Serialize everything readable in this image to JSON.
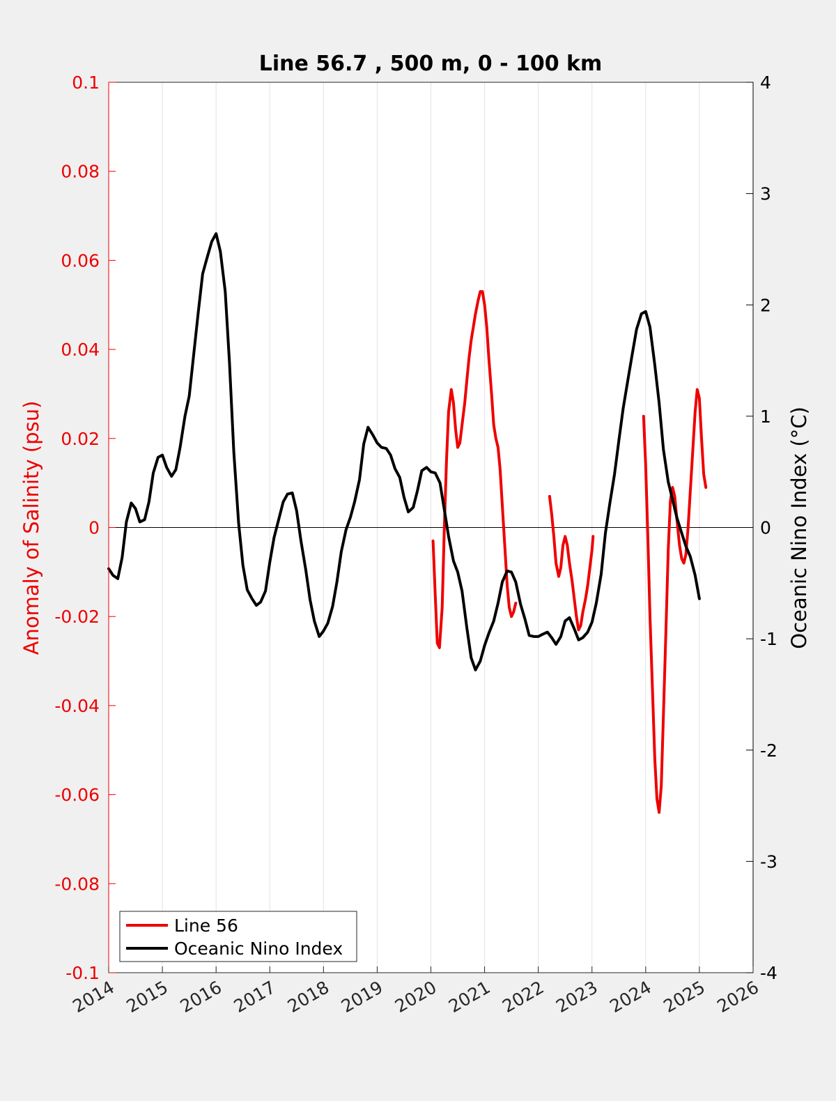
{
  "chart_data": {
    "type": "line",
    "title": "Line 56.7 , 500 m, 0 - 100 km",
    "ylabel_left": "Anomaly of Salinity (psu)",
    "ylabel_right": "Oceanic Nino Index (°C)",
    "xlim": [
      2014,
      2026
    ],
    "ylim_left": [
      -0.1,
      0.1
    ],
    "ylim_right": [
      -4,
      4
    ],
    "x_ticks": [
      "2014",
      "2015",
      "2016",
      "2017",
      "2018",
      "2019",
      "2020",
      "2021",
      "2022",
      "2023",
      "2024",
      "2025",
      "2026"
    ],
    "y_left_ticks": [
      "0.1",
      "0.08",
      "0.06",
      "0.04",
      "0.02",
      "0",
      "-0.02",
      "-0.04",
      "-0.06",
      "-0.08",
      "-0.1"
    ],
    "y_right_ticks": [
      "4",
      "3",
      "2",
      "1",
      "0",
      "-1",
      "-2",
      "-3",
      "-4"
    ],
    "grid": "vertical",
    "zero_line": true,
    "legend": {
      "position": "bottom-left",
      "entries": [
        "Line 56",
        "Oceanic Nino Index"
      ]
    },
    "colors": {
      "line56": "#ee0000",
      "oni": "#000000",
      "left_axis": "#ee0000",
      "right_axis": "#000000"
    },
    "series": [
      {
        "name": "Line 56",
        "axis": "left",
        "color": "#ee0000",
        "segments": [
          [
            [
              2020.04,
              -0.003
            ],
            [
              2020.08,
              -0.015
            ],
            [
              2020.12,
              -0.026
            ],
            [
              2020.16,
              -0.027
            ],
            [
              2020.21,
              -0.018
            ],
            [
              2020.25,
              0.0
            ],
            [
              2020.29,
              0.015
            ],
            [
              2020.33,
              0.026
            ],
            [
              2020.38,
              0.031
            ],
            [
              2020.42,
              0.028
            ],
            [
              2020.46,
              0.022
            ],
            [
              2020.5,
              0.018
            ],
            [
              2020.54,
              0.019
            ],
            [
              2020.58,
              0.023
            ],
            [
              2020.63,
              0.028
            ],
            [
              2020.67,
              0.033
            ],
            [
              2020.71,
              0.038
            ],
            [
              2020.75,
              0.042
            ],
            [
              2020.79,
              0.045
            ],
            [
              2020.83,
              0.048
            ],
            [
              2020.88,
              0.051
            ],
            [
              2020.92,
              0.053
            ],
            [
              2020.96,
              0.053
            ],
            [
              2021.0,
              0.05
            ],
            [
              2021.04,
              0.045
            ],
            [
              2021.08,
              0.038
            ],
            [
              2021.13,
              0.03
            ],
            [
              2021.17,
              0.023
            ],
            [
              2021.21,
              0.02
            ],
            [
              2021.25,
              0.018
            ],
            [
              2021.29,
              0.013
            ],
            [
              2021.33,
              0.005
            ],
            [
              2021.38,
              -0.005
            ],
            [
              2021.42,
              -0.013
            ],
            [
              2021.46,
              -0.018
            ],
            [
              2021.5,
              -0.02
            ],
            [
              2021.54,
              -0.019
            ],
            [
              2021.58,
              -0.017
            ]
          ],
          [
            [
              2022.21,
              0.007
            ],
            [
              2022.25,
              0.003
            ],
            [
              2022.29,
              -0.002
            ],
            [
              2022.33,
              -0.008
            ],
            [
              2022.38,
              -0.011
            ],
            [
              2022.42,
              -0.009
            ],
            [
              2022.46,
              -0.004
            ],
            [
              2022.5,
              -0.002
            ],
            [
              2022.54,
              -0.004
            ],
            [
              2022.58,
              -0.008
            ],
            [
              2022.63,
              -0.012
            ],
            [
              2022.67,
              -0.016
            ],
            [
              2022.71,
              -0.02
            ],
            [
              2022.75,
              -0.023
            ],
            [
              2022.79,
              -0.022
            ],
            [
              2022.83,
              -0.019
            ],
            [
              2022.88,
              -0.016
            ],
            [
              2022.92,
              -0.013
            ],
            [
              2022.96,
              -0.009
            ],
            [
              2023.0,
              -0.005
            ],
            [
              2023.02,
              -0.002
            ]
          ],
          [
            [
              2023.96,
              0.025
            ],
            [
              2024.0,
              0.014
            ],
            [
              2024.04,
              -0.002
            ],
            [
              2024.08,
              -0.02
            ],
            [
              2024.13,
              -0.038
            ],
            [
              2024.17,
              -0.052
            ],
            [
              2024.21,
              -0.061
            ],
            [
              2024.25,
              -0.064
            ],
            [
              2024.29,
              -0.058
            ],
            [
              2024.33,
              -0.042
            ],
            [
              2024.38,
              -0.022
            ],
            [
              2024.42,
              -0.005
            ],
            [
              2024.46,
              0.006
            ],
            [
              2024.5,
              0.009
            ],
            [
              2024.54,
              0.007
            ],
            [
              2024.58,
              0.002
            ],
            [
              2024.63,
              -0.004
            ],
            [
              2024.67,
              -0.007
            ],
            [
              2024.71,
              -0.008
            ],
            [
              2024.75,
              -0.006
            ],
            [
              2024.79,
              0.0
            ],
            [
              2024.83,
              0.008
            ],
            [
              2024.88,
              0.018
            ],
            [
              2024.92,
              0.026
            ],
            [
              2024.96,
              0.031
            ],
            [
              2025.0,
              0.029
            ],
            [
              2025.04,
              0.02
            ],
            [
              2025.08,
              0.012
            ],
            [
              2025.12,
              0.009
            ]
          ]
        ]
      },
      {
        "name": "Oceanic Nino Index",
        "axis": "right",
        "color": "#000000",
        "x": [
          2014.0,
          2014.08,
          2014.17,
          2014.25,
          2014.33,
          2014.42,
          2014.5,
          2014.58,
          2014.67,
          2014.75,
          2014.83,
          2014.92,
          2015.0,
          2015.08,
          2015.17,
          2015.25,
          2015.33,
          2015.42,
          2015.5,
          2015.58,
          2015.67,
          2015.75,
          2015.83,
          2015.92,
          2016.0,
          2016.08,
          2016.17,
          2016.25,
          2016.33,
          2016.42,
          2016.5,
          2016.58,
          2016.67,
          2016.75,
          2016.83,
          2016.92,
          2017.0,
          2017.08,
          2017.17,
          2017.25,
          2017.33,
          2017.42,
          2017.5,
          2017.58,
          2017.67,
          2017.75,
          2017.83,
          2017.92,
          2018.0,
          2018.08,
          2018.17,
          2018.25,
          2018.33,
          2018.42,
          2018.5,
          2018.58,
          2018.67,
          2018.75,
          2018.83,
          2018.92,
          2019.0,
          2019.08,
          2019.17,
          2019.25,
          2019.33,
          2019.42,
          2019.5,
          2019.58,
          2019.67,
          2019.75,
          2019.83,
          2019.92,
          2020.0,
          2020.08,
          2020.17,
          2020.25,
          2020.33,
          2020.42,
          2020.5,
          2020.58,
          2020.67,
          2020.75,
          2020.83,
          2020.92,
          2021.0,
          2021.08,
          2021.17,
          2021.25,
          2021.33,
          2021.42,
          2021.5,
          2021.58,
          2021.67,
          2021.75,
          2021.83,
          2021.92,
          2022.0,
          2022.08,
          2022.17,
          2022.25,
          2022.33,
          2022.42,
          2022.5,
          2022.58,
          2022.67,
          2022.75,
          2022.83,
          2022.92,
          2023.0,
          2023.08,
          2023.17,
          2023.25,
          2023.33,
          2023.42,
          2023.5,
          2023.58,
          2023.67,
          2023.75,
          2023.83,
          2023.92,
          2024.0,
          2024.08,
          2024.17,
          2024.25,
          2024.33,
          2024.42,
          2024.5,
          2024.58,
          2024.67,
          2024.75,
          2024.83,
          2024.92,
          2025.0
        ],
        "values": [
          -0.37,
          -0.43,
          -0.46,
          -0.27,
          0.05,
          0.22,
          0.17,
          0.05,
          0.07,
          0.23,
          0.49,
          0.63,
          0.65,
          0.54,
          0.46,
          0.52,
          0.72,
          1.0,
          1.18,
          1.54,
          1.94,
          2.28,
          2.42,
          2.57,
          2.64,
          2.48,
          2.12,
          1.48,
          0.68,
          0.04,
          -0.34,
          -0.56,
          -0.64,
          -0.7,
          -0.67,
          -0.57,
          -0.31,
          -0.09,
          0.08,
          0.23,
          0.3,
          0.31,
          0.15,
          -0.12,
          -0.38,
          -0.65,
          -0.84,
          -0.98,
          -0.93,
          -0.86,
          -0.71,
          -0.49,
          -0.22,
          -0.02,
          0.09,
          0.23,
          0.43,
          0.75,
          0.9,
          0.83,
          0.76,
          0.72,
          0.71,
          0.65,
          0.53,
          0.45,
          0.27,
          0.14,
          0.18,
          0.33,
          0.51,
          0.54,
          0.5,
          0.49,
          0.4,
          0.16,
          -0.08,
          -0.3,
          -0.4,
          -0.57,
          -0.9,
          -1.17,
          -1.28,
          -1.2,
          -1.06,
          -0.95,
          -0.84,
          -0.68,
          -0.49,
          -0.39,
          -0.4,
          -0.49,
          -0.69,
          -0.82,
          -0.97,
          -0.98,
          -0.98,
          -0.96,
          -0.94,
          -0.99,
          -1.05,
          -0.98,
          -0.84,
          -0.81,
          -0.91,
          -1.01,
          -0.99,
          -0.94,
          -0.85,
          -0.68,
          -0.42,
          -0.05,
          0.21,
          0.48,
          0.78,
          1.07,
          1.33,
          1.56,
          1.78,
          1.92,
          1.94,
          1.8,
          1.46,
          1.12,
          0.7,
          0.41,
          0.25,
          0.09,
          -0.05,
          -0.17,
          -0.26,
          -0.43,
          -0.64
        ]
      }
    ]
  }
}
